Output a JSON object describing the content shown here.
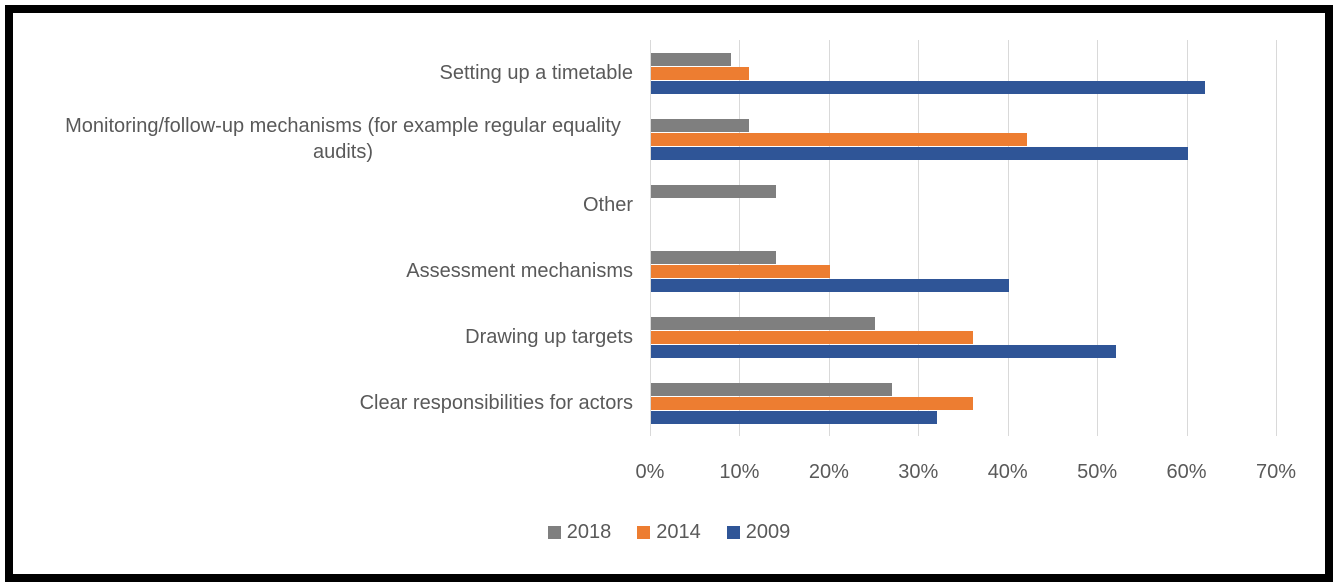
{
  "chart_data": {
    "type": "bar",
    "orientation": "horizontal",
    "title": "",
    "categories": [
      "Setting up a timetable",
      "Monitoring/follow-up mechanisms (for example regular equality audits)",
      "Other",
      "Assessment mechanisms",
      "Drawing up targets",
      "Clear responsibilities for actors"
    ],
    "series": [
      {
        "name": "2018",
        "color": "#7F7F7F",
        "values": [
          9,
          11,
          14,
          14,
          25,
          27
        ]
      },
      {
        "name": "2014",
        "color": "#ED7D31",
        "values": [
          11,
          42,
          0,
          20,
          36,
          36
        ]
      },
      {
        "name": "2009",
        "color": "#2F5597",
        "values": [
          62,
          60,
          0,
          40,
          52,
          32
        ]
      }
    ],
    "x_ticks": [
      "0%",
      "10%",
      "20%",
      "30%",
      "40%",
      "50%",
      "60%",
      "70%"
    ],
    "xlim": [
      0,
      70
    ],
    "x_tick_interval": 10,
    "grid": true,
    "legend_position": "bottom",
    "value_unit": "percent"
  },
  "colors": {
    "text": "#595959",
    "gridline": "#D9D9D9",
    "frame_border": "#000000",
    "background": "#FFFFFF"
  }
}
